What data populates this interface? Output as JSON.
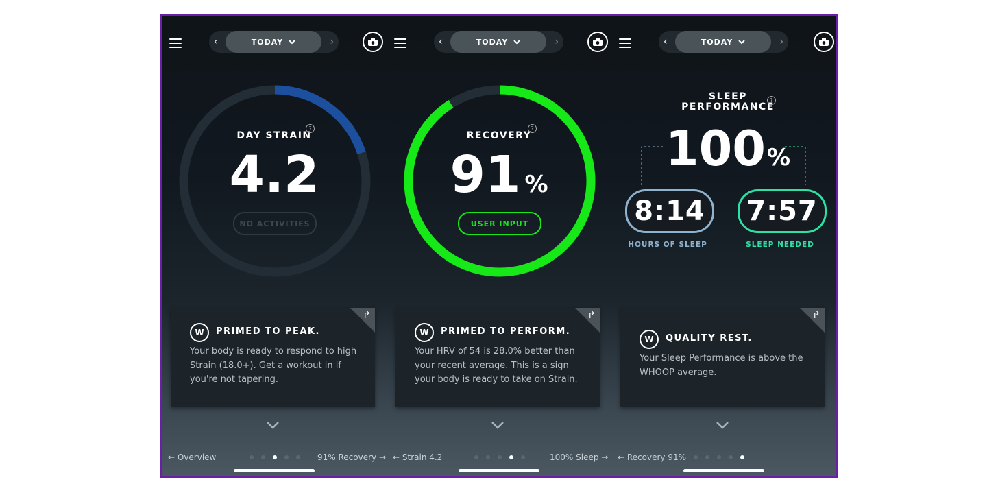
{
  "colors": {
    "strain_blue": "#1d4f9f",
    "recovery_green": "#17e817",
    "sleep_hours_ring": "#8fb3cf",
    "sleep_needed_ring": "#2fe0a6",
    "frame_border": "#6a1fa8"
  },
  "icons": {
    "menu": "hamburger-icon",
    "camera": "camera-icon",
    "help": "question-icon",
    "brand": "whoop-w-icon",
    "expand": "chevron-down-icon",
    "share": "share-arrow-icon"
  },
  "panels": [
    {
      "date_label": "TODAY",
      "metric_label": "DAY STRAIN",
      "value": "4.2",
      "strain_level_fraction": 0.2,
      "button_label": "NO ACTIVITIES",
      "card": {
        "title": "PRIMED TO PEAK.",
        "body": "Your body is ready to respond to high Strain (18.0+). Get a workout in if you're not tapering."
      },
      "nav_left": "← Overview",
      "nav_right": "91% Recovery →",
      "active_dot": 2
    },
    {
      "date_label": "TODAY",
      "metric_label": "RECOVERY",
      "value": "91",
      "unit": "%",
      "recovery_fraction": 0.91,
      "button_label": "USER INPUT",
      "card": {
        "title": "PRIMED TO PERFORM.",
        "body": "Your HRV of 54 is 28.0% better than your recent average. This is a sign your body is ready to take on Strain."
      },
      "nav_left": "← Strain 4.2",
      "nav_right": "100% Sleep →",
      "active_dot": 3
    },
    {
      "date_label": "TODAY",
      "metric_label_line1": "SLEEP",
      "metric_label_line2": "PERFORMANCE",
      "value": "100",
      "unit": "%",
      "hours_of_sleep": "8:14",
      "hours_of_sleep_label": "HOURS OF SLEEP",
      "sleep_needed": "7:57",
      "sleep_needed_label": "SLEEP NEEDED",
      "card": {
        "title": "QUALITY REST.",
        "body": "Your Sleep Performance is above the WHOOP average."
      },
      "nav_left": "← Recovery 91%",
      "active_dot": 4
    }
  ]
}
